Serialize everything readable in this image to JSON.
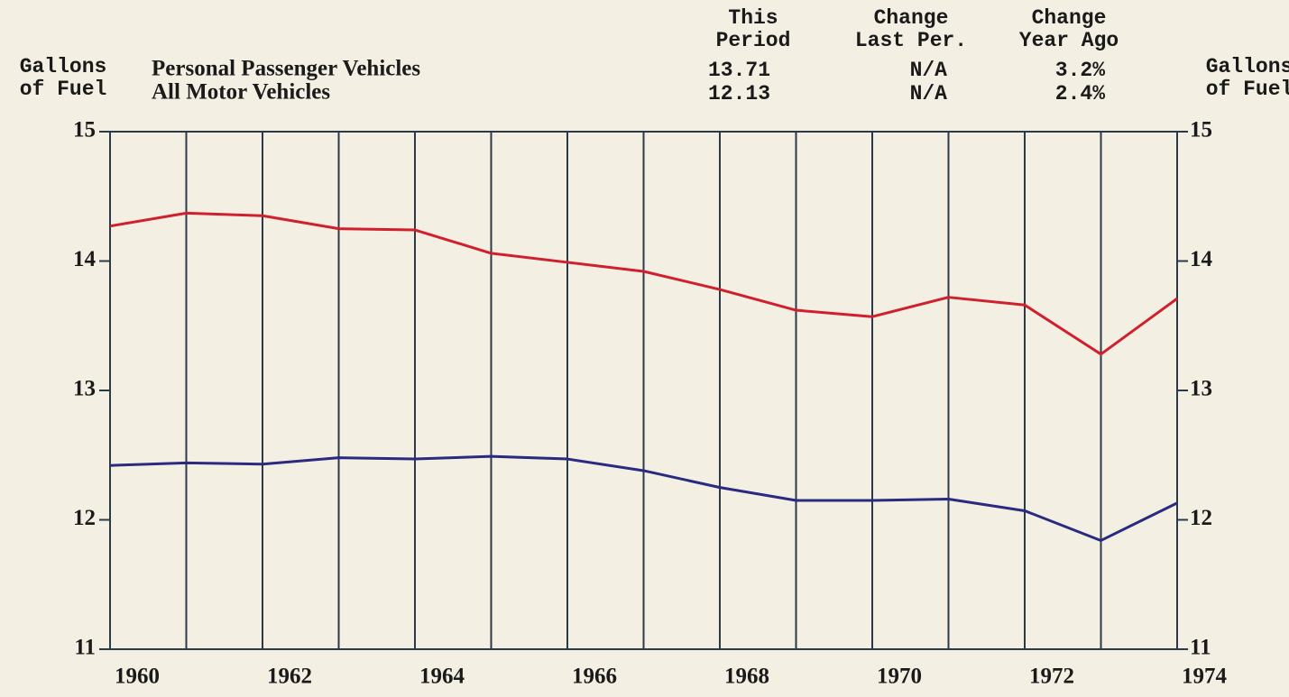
{
  "chart_data": {
    "type": "line",
    "ylabel": [
      "Gallons",
      "of Fuel"
    ],
    "y2label": [
      "Gallons",
      "of Fuel"
    ],
    "columns": [
      [
        "This",
        "Period"
      ],
      [
        "Change",
        "Last Per."
      ],
      [
        "Change",
        "Year Ago"
      ]
    ],
    "x": [
      1960,
      1961,
      1962,
      1963,
      1964,
      1965,
      1966,
      1967,
      1968,
      1969,
      1970,
      1971,
      1972,
      1973,
      1974
    ],
    "series": [
      {
        "name": "Personal Passenger Vehicles",
        "color": "#d0202e",
        "stats": [
          "13.71",
          "N/A",
          "3.2%"
        ],
        "values": [
          14.27,
          14.37,
          14.35,
          14.25,
          14.24,
          14.06,
          13.99,
          13.92,
          13.78,
          13.62,
          13.57,
          13.72,
          13.66,
          13.28,
          13.71
        ]
      },
      {
        "name": "All Motor Vehicles",
        "color": "#2a2a80",
        "stats": [
          "12.13",
          "N/A",
          "2.4%"
        ],
        "values": [
          12.42,
          12.44,
          12.43,
          12.48,
          12.47,
          12.49,
          12.47,
          12.38,
          12.25,
          12.15,
          12.15,
          12.16,
          12.07,
          11.84,
          12.13
        ]
      }
    ],
    "xlim": [
      1960,
      1974
    ],
    "xticks": [
      1960,
      1962,
      1964,
      1966,
      1968,
      1970,
      1972,
      1974
    ],
    "ylim": [
      11,
      15
    ],
    "yticks": [
      11,
      12,
      13,
      14,
      15
    ],
    "y2lim": [
      11,
      15
    ],
    "y2ticks": [
      11,
      12,
      13,
      14,
      15
    ],
    "grid": true
  }
}
